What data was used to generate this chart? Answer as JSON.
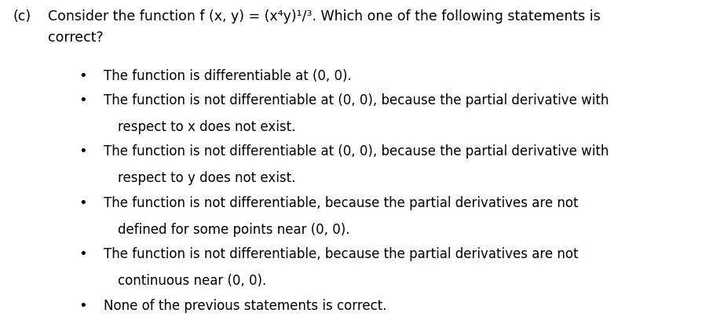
{
  "bg_color": "#ffffff",
  "text_color": "#000000",
  "label_c": "(c)",
  "question_line1": "Consider the function f (x, y) = (x⁴y)¹/³. Which one of the following statements is",
  "question_line2": "correct?",
  "bullet_items": [
    [
      "The function is differentiable at (0, 0)."
    ],
    [
      "The function is not differentiable at (0, 0), because the partial derivative with",
      "respect to x does not exist."
    ],
    [
      "The function is not differentiable at (0, 0), because the partial derivative with",
      "respect to y does not exist."
    ],
    [
      "The function is not differentiable, because the partial derivatives are not",
      "defined for some points near (0, 0)."
    ],
    [
      "The function is not differentiable, because the partial derivatives are not",
      "continuous near (0, 0)."
    ],
    [
      "None of the previous statements is correct."
    ]
  ],
  "font_size_main": 12.5,
  "font_size_bullet": 12.0,
  "bullet_char": "•",
  "indent_label": 0.018,
  "indent_question": 0.068,
  "indent_bullet_dot": 0.118,
  "indent_bullet_text": 0.148,
  "indent_bullet_wrap": 0.168
}
